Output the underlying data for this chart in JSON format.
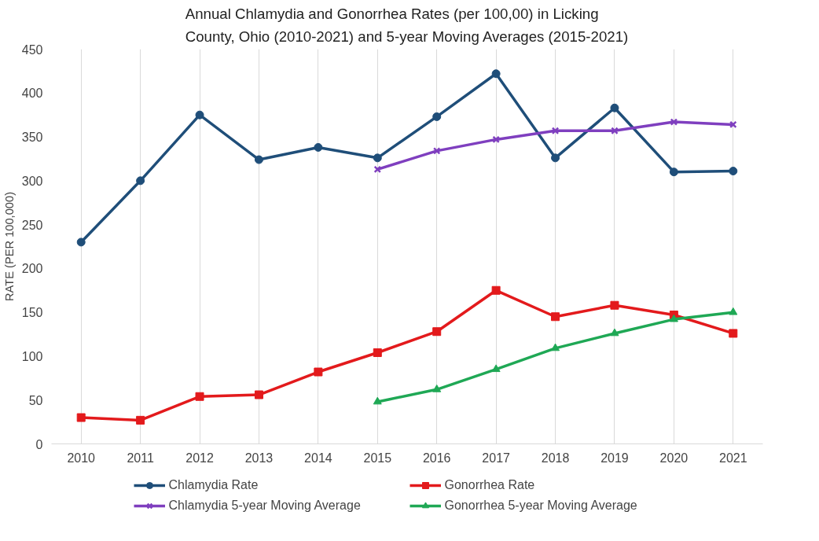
{
  "chart_data": {
    "type": "line",
    "title": "Annual Chlamydia and Gonorrhea Rates (per 100,00) in Licking\nCounty, Ohio (2010-2021) and 5-year Moving Averages (2015-2021)",
    "ylabel": "RATE (PER 100,000)",
    "categories": [
      "2010",
      "2011",
      "2012",
      "2013",
      "2014",
      "2015",
      "2016",
      "2017",
      "2018",
      "2019",
      "2020",
      "2021"
    ],
    "ylim": [
      0,
      450
    ],
    "yticks": [
      0,
      50,
      100,
      150,
      200,
      250,
      300,
      350,
      400,
      450
    ],
    "grid": "x",
    "legend": "bottom",
    "series": [
      {
        "name": "Chlamydia Rate",
        "color": "#1f4e79",
        "marker": "circle",
        "values": [
          230,
          300,
          375,
          324,
          338,
          326,
          373,
          422,
          326,
          383,
          310,
          311
        ]
      },
      {
        "name": "Chlamydia 5-year Moving Average",
        "color": "#7f3fbf",
        "marker": "cross",
        "values": [
          null,
          null,
          null,
          null,
          null,
          313,
          334,
          347,
          357,
          357,
          367,
          364
        ]
      },
      {
        "name": "Gonorrhea Rate",
        "color": "#e31a1c",
        "marker": "square",
        "values": [
          30,
          27,
          54,
          56,
          82,
          104,
          128,
          175,
          145,
          158,
          147,
          126
        ]
      },
      {
        "name": "Gonorrhea 5-year Moving Average",
        "color": "#1fa855",
        "marker": "triangle",
        "values": [
          null,
          null,
          null,
          null,
          null,
          48,
          62,
          85,
          109,
          126,
          142,
          150
        ]
      }
    ]
  }
}
